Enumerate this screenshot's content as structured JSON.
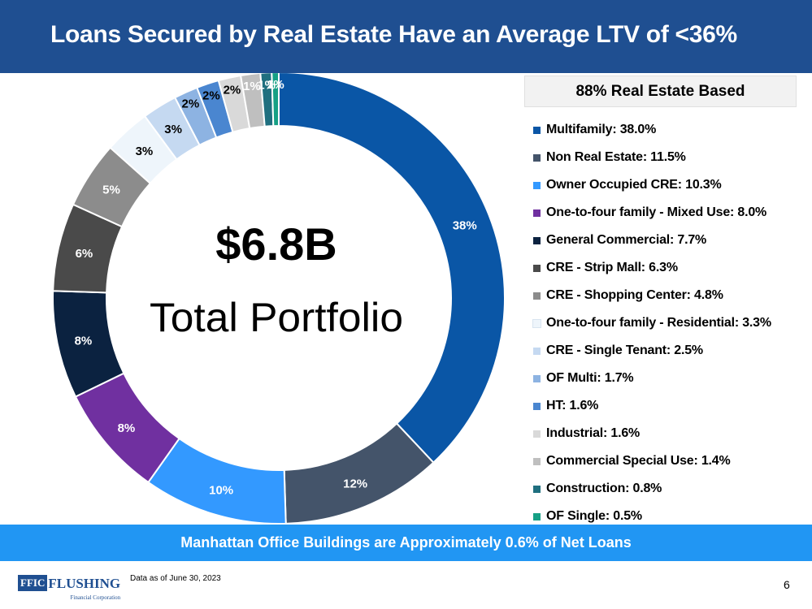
{
  "header": {
    "title": "Loans Secured by Real Estate Have an Average LTV of <36%"
  },
  "center": {
    "amount": "$6.8B",
    "label": "Total Portfolio"
  },
  "legend_title": "88% Real Estate Based",
  "bottom_banner": "Manhattan Office Buildings are Approximately 0.6% of Net Loans",
  "footer": {
    "logo_box": "FFIC",
    "logo_word": "FLUSHING",
    "logo_sub": "Financial Corporation",
    "note": "Data as of June 30, 2023",
    "page_number": "6"
  },
  "colors": {
    "header_bg": "#1f4f91",
    "banner_bg": "#2196f3"
  },
  "chart_data": {
    "type": "pie",
    "donut": true,
    "title": "",
    "legend_position": "right",
    "slices": [
      {
        "label": "Multifamily: 38.0%",
        "value": 38.0,
        "data_label": "38%",
        "color": "#0a56a6",
        "label_color": "#ffffff"
      },
      {
        "label": "Non Real Estate: 11.5%",
        "value": 11.5,
        "data_label": "12%",
        "color": "#44546a",
        "label_color": "#ffffff"
      },
      {
        "label": "Owner Occupied CRE: 10.3%",
        "value": 10.3,
        "data_label": "10%",
        "color": "#3399ff",
        "label_color": "#ffffff"
      },
      {
        "label": "One-to-four family - Mixed Use: 8.0%",
        "value": 8.0,
        "data_label": "8%",
        "color": "#7030a0",
        "label_color": "#ffffff"
      },
      {
        "label": "General Commercial: 7.7%",
        "value": 7.7,
        "data_label": "8%",
        "color": "#0b2240",
        "label_color": "#ffffff"
      },
      {
        "label": "CRE - Strip Mall: 6.3%",
        "value": 6.3,
        "data_label": "6%",
        "color": "#4a4a4a",
        "label_color": "#ffffff"
      },
      {
        "label": "CRE - Shopping Center: 4.8%",
        "value": 4.8,
        "data_label": "5%",
        "color": "#8c8c8c",
        "label_color": "#ffffff"
      },
      {
        "label": "One-to-four family - Residential: 3.3%",
        "value": 3.3,
        "data_label": "3%",
        "color": "#eef5fb",
        "label_color": "#000000"
      },
      {
        "label": "CRE - Single Tenant: 2.5%",
        "value": 2.5,
        "data_label": "3%",
        "color": "#c5d9f1",
        "label_color": "#000000"
      },
      {
        "label": "OF Multi: 1.7%",
        "value": 1.7,
        "data_label": "2%",
        "color": "#8db3e2",
        "label_color": "#000000"
      },
      {
        "label": "HT: 1.6%",
        "value": 1.6,
        "data_label": "2%",
        "color": "#4a86d0",
        "label_color": "#000000"
      },
      {
        "label": "Industrial: 1.6%",
        "value": 1.6,
        "data_label": "2%",
        "color": "#d9d9d9",
        "label_color": "#000000"
      },
      {
        "label": "Commercial Special Use: 1.4%",
        "value": 1.4,
        "data_label": "1%",
        "color": "#bfbfbf",
        "label_color": "#ffffff"
      },
      {
        "label": "Construction: 0.8%",
        "value": 0.8,
        "data_label": "1%",
        "color": "#1f6f7f",
        "label_color": "#ffffff"
      },
      {
        "label": "OF Single: 0.5%",
        "value": 0.5,
        "data_label": "1%",
        "color": "#16a085",
        "label_color": "#ffffff"
      }
    ]
  }
}
